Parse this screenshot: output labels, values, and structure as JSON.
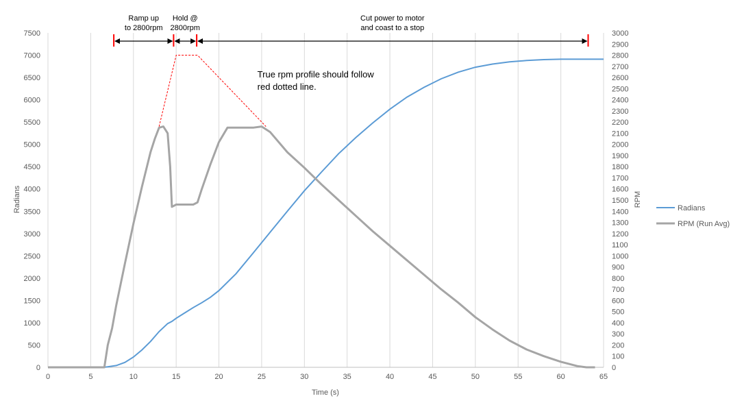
{
  "chart_data": {
    "type": "line",
    "title": "",
    "xlabel": "Time (s)",
    "ylabel_left": "Radians",
    "ylabel_right": "RPM",
    "xlim": [
      0,
      65
    ],
    "ylim_left": [
      0,
      7500
    ],
    "ylim_right": [
      0,
      3000
    ],
    "xticks": [
      "0",
      "5",
      "10",
      "15",
      "20",
      "25",
      "30",
      "35",
      "40",
      "45",
      "50",
      "55",
      "60",
      "65"
    ],
    "yticks_left": [
      "0",
      "500",
      "1000",
      "1500",
      "2000",
      "2500",
      "3000",
      "3500",
      "4000",
      "4500",
      "5000",
      "5500",
      "6000",
      "6500",
      "7000",
      "7500"
    ],
    "yticks_right": [
      "0",
      "100",
      "200",
      "300",
      "400",
      "500",
      "600",
      "700",
      "800",
      "900",
      "1000",
      "1100",
      "1200",
      "1300",
      "1400",
      "1500",
      "1600",
      "1700",
      "1800",
      "1900",
      "2000",
      "2100",
      "2200",
      "2300",
      "2400",
      "2500",
      "2600",
      "2700",
      "2800",
      "2900",
      "3000"
    ],
    "grid": "vertical",
    "legend_position": "right",
    "colors": {
      "radians": "#5B9BD5",
      "rpm": "#A5A5A5",
      "profile": "#FF0000",
      "annotation": "#000000"
    },
    "series": [
      {
        "name": "Radians",
        "axis": "left",
        "x": [
          0,
          6.5,
          7,
          8,
          9,
          10,
          11,
          12,
          13,
          14,
          14.5,
          15,
          16,
          17,
          18,
          19,
          20,
          22,
          24,
          26,
          28,
          30,
          32,
          34,
          36,
          38,
          40,
          42,
          44,
          46,
          48,
          50,
          52,
          54,
          56,
          58,
          60,
          62,
          63,
          65
        ],
        "values": [
          0,
          0,
          10,
          40,
          110,
          230,
          390,
          580,
          800,
          980,
          1030,
          1100,
          1220,
          1340,
          1450,
          1570,
          1720,
          2100,
          2560,
          3030,
          3500,
          3960,
          4380,
          4790,
          5150,
          5480,
          5790,
          6060,
          6280,
          6470,
          6620,
          6730,
          6800,
          6850,
          6880,
          6900,
          6910,
          6910,
          6910,
          6910
        ]
      },
      {
        "name": "RPM (Run Avg)",
        "axis": "right",
        "x": [
          0,
          6.6,
          7,
          7.5,
          8,
          9,
          10,
          11,
          12,
          12.5,
          13,
          13.5,
          14,
          14.3,
          14.5,
          15,
          16,
          17,
          17.5,
          18,
          19,
          20,
          21,
          22,
          23,
          24,
          25,
          26,
          28,
          30,
          32,
          34,
          36,
          38,
          40,
          42,
          44,
          46,
          48,
          50,
          52,
          54,
          56,
          58,
          60,
          62,
          63,
          64
        ],
        "values": [
          0,
          0,
          200,
          350,
          560,
          930,
          1290,
          1620,
          1930,
          2050,
          2150,
          2160,
          2100,
          1800,
          1440,
          1460,
          1460,
          1460,
          1480,
          1600,
          1820,
          2020,
          2150,
          2150,
          2150,
          2150,
          2160,
          2110,
          1930,
          1790,
          1640,
          1500,
          1360,
          1220,
          1090,
          960,
          830,
          700,
          580,
          450,
          340,
          240,
          160,
          100,
          50,
          10,
          0,
          0
        ]
      },
      {
        "name": "",
        "axis": "right",
        "style": "dashed",
        "x": [
          13,
          15,
          17.5,
          25.5
        ],
        "values": [
          2160,
          2800,
          2800,
          2160
        ]
      }
    ],
    "annotations": [
      {
        "text_lines": [
          "Ramp up",
          "to 2800rpm"
        ],
        "x_start": 7.7,
        "x_end": 14.7
      },
      {
        "text_lines": [
          "Hold @",
          "2800rpm"
        ],
        "x_start": 14.7,
        "x_end": 17.4
      },
      {
        "text_lines": [
          "Cut power to motor",
          "and coast to a stop"
        ],
        "x_start": 17.4,
        "x_end": 63.2
      },
      {
        "text_lines": [
          "True rpm profile should follow",
          "red dotted line."
        ],
        "x": 24.5,
        "y_right": 2600
      }
    ]
  }
}
